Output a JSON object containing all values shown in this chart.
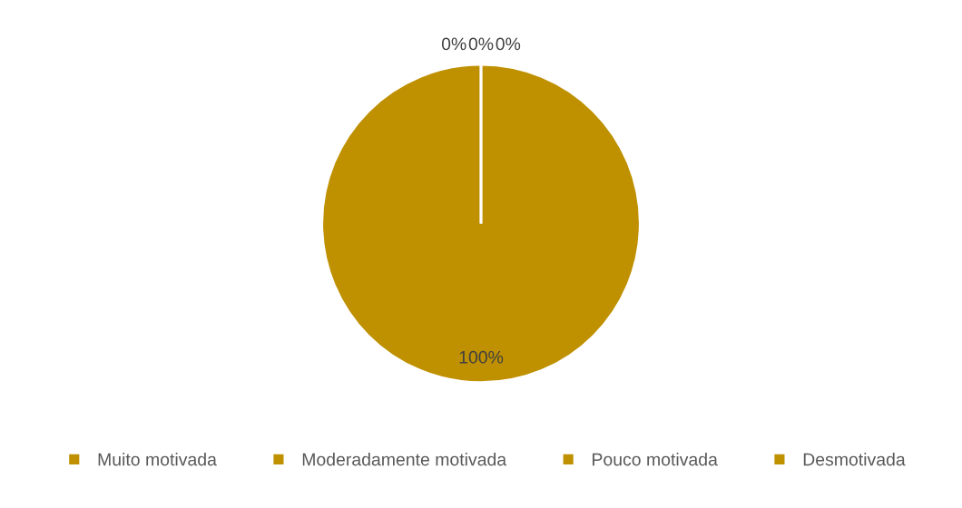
{
  "chart_data": {
    "type": "pie",
    "categories": [
      "Muito motivada",
      "Moderadamente motivada",
      "Pouco motivada",
      "Desmotivada"
    ],
    "values": [
      0,
      100,
      0,
      0
    ],
    "colors": [
      "#bf9000",
      "#bf9000",
      "#bf9000",
      "#bf9000"
    ],
    "value_labels": [
      "0%",
      "100%",
      "0%",
      "0%"
    ],
    "legend": "bottom"
  }
}
